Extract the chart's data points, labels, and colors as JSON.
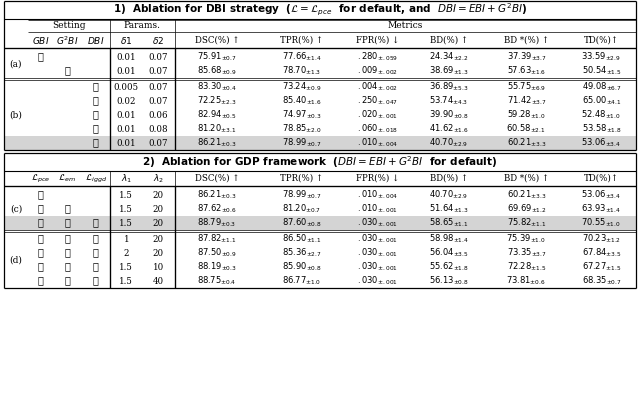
{
  "row_a_label": "(a)",
  "row_a1": [
    "✓",
    "",
    "",
    "0.01",
    "0.07",
    "75.91_{\\pm0.7}",
    "77.66_{\\pm1.4}",
    ".280_{\\pm.059}",
    "24.34_{\\pm2.2}",
    "37.39_{\\pm3.7}",
    "33.59_{\\pm2.9}"
  ],
  "row_a2": [
    "",
    "✓",
    "",
    "0.01",
    "0.07",
    "85.68_{\\pm0.9}",
    "78.70_{\\pm1.3}",
    ".009_{\\pm.002}",
    "38.69_{\\pm1.3}",
    "57.63_{\\pm1.6}",
    "50.54_{\\pm1.5}"
  ],
  "row_b_label": "(b)",
  "row_b1": [
    "",
    "",
    "✓",
    "0.005",
    "0.07",
    "83.30_{\\pm0.4}",
    "73.24_{\\pm0.9}",
    ".004_{\\pm.002}",
    "36.89_{\\pm5.3}",
    "55.75_{\\pm6.9}",
    "49.08_{\\pm6.7}"
  ],
  "row_b2": [
    "",
    "",
    "✓",
    "0.02",
    "0.07",
    "72.25_{\\pm2.3}",
    "85.40_{\\pm1.6}",
    ".250_{\\pm.047}",
    "53.74_{\\pm4.3}",
    "71.42_{\\pm3.7}",
    "65.00_{\\pm4.1}"
  ],
  "row_b3": [
    "",
    "",
    "✓",
    "0.01",
    "0.06",
    "82.94_{\\pm0.5}",
    "74.97_{\\pm0.3}",
    ".020_{\\pm.001}",
    "39.90_{\\pm0.8}",
    "59.28_{\\pm1.0}",
    "52.48_{\\pm1.0}"
  ],
  "row_b4": [
    "",
    "",
    "✓",
    "0.01",
    "0.08",
    "81.20_{\\pm3.1}",
    "78.85_{\\pm2.0}",
    ".060_{\\pm.018}",
    "41.62_{\\pm1.6}",
    "60.58_{\\pm2.1}",
    "53.58_{\\pm1.8}"
  ],
  "row_b5": [
    "",
    "",
    "✓",
    "0.01",
    "0.07",
    "86.21_{\\pm0.3}",
    "78.99_{\\pm0.7}",
    ".010_{\\pm.004}",
    "40.70_{\\pm2.9}",
    "60.21_{\\pm3.3}",
    "53.06_{\\pm3.4}"
  ],
  "row_c_label": "(c)",
  "row_c1": [
    "✓",
    "",
    "",
    "1.5",
    "20",
    "86.21_{\\pm0.3}",
    "78.99_{\\pm0.7}",
    ".010_{\\pm.004}",
    "40.70_{\\pm2.9}",
    "60.21_{\\pm3.3}",
    "53.06_{\\pm3.4}"
  ],
  "row_c2": [
    "✓",
    "✓",
    "",
    "1.5",
    "20",
    "87.62_{\\pm0.6}",
    "81.20_{\\pm0.7}",
    ".010_{\\pm.001}",
    "51.64_{\\pm1.3}",
    "69.69_{\\pm1.2}",
    "63.93_{\\pm1.4}"
  ],
  "row_c3": [
    "✓",
    "✓",
    "✓",
    "1.5",
    "20",
    "88.79_{\\pm0.3}",
    "87.60_{\\pm0.8}",
    ".030_{\\pm.001}",
    "58.65_{\\pm1.1}",
    "75.82_{\\pm1.1}",
    "70.55_{\\pm1.0}"
  ],
  "row_d_label": "(d)",
  "row_d1": [
    "✓",
    "✓",
    "✓",
    "1",
    "20",
    "87.82_{\\pm1.1}",
    "86.50_{\\pm1.1}",
    ".030_{\\pm.001}",
    "58.98_{\\pm1.4}",
    "75.39_{\\pm1.0}",
    "70.23_{\\pm1.2}"
  ],
  "row_d2": [
    "✓",
    "✓",
    "✓",
    "2",
    "20",
    "87.50_{\\pm0.9}",
    "85.36_{\\pm2.7}",
    ".030_{\\pm.001}",
    "56.04_{\\pm3.5}",
    "73.35_{\\pm3.7}",
    "67.84_{\\pm3.5}"
  ],
  "row_d3": [
    "✓",
    "✓",
    "✓",
    "1.5",
    "10",
    "88.19_{\\pm0.3}",
    "85.90_{\\pm0.8}",
    ".030_{\\pm.001}",
    "55.62_{\\pm1.8}",
    "72.28_{\\pm1.5}",
    "67.27_{\\pm1.5}"
  ],
  "row_d4": [
    "✓",
    "✓",
    "✓",
    "1.5",
    "40",
    "88.75_{\\pm0.4}",
    "86.77_{\\pm1.0}",
    ".030_{\\pm.001}",
    "56.13_{\\pm0.8}",
    "73.81_{\\pm0.6}",
    "68.35_{\\pm0.7}"
  ]
}
